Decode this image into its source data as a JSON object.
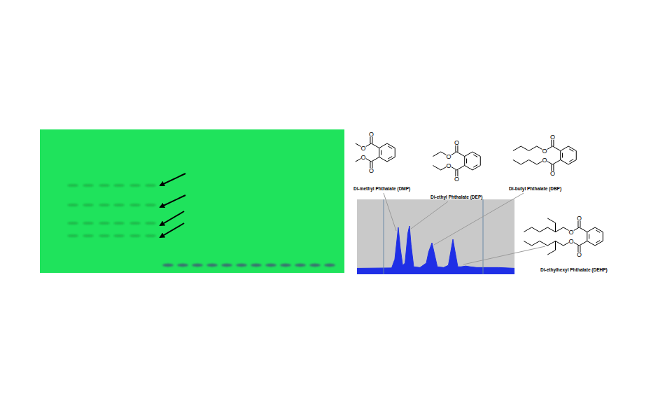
{
  "chart_data": {
    "type": "area",
    "x": [
      0,
      10,
      16.9,
      22,
      24,
      25,
      26.2,
      27.5,
      29,
      30.5,
      31.5,
      32.3,
      33.3,
      34.3,
      36,
      40,
      44,
      45.5,
      47.6,
      49,
      51,
      55,
      58,
      59.5,
      60.9,
      62.3,
      64,
      66,
      69,
      72,
      76,
      80,
      90,
      100
    ],
    "values": [
      8,
      8,
      8,
      8.5,
      20,
      40,
      62.6,
      35,
      12,
      15,
      35,
      55,
      64.5,
      40,
      10,
      9,
      15,
      30,
      42,
      30,
      10,
      9,
      12,
      30,
      46.7,
      30,
      10,
      10,
      11,
      10,
      9,
      9,
      9,
      8
    ],
    "color": "#1f2fe6",
    "xlim": [
      0,
      100
    ],
    "ylim": [
      0,
      100
    ],
    "vlines": [
      16.9,
      80
    ],
    "tick_labels": false,
    "grid": false
  },
  "structures": [
    {
      "label": "Di-methyl Phthalate (DMP)"
    },
    {
      "label": "Di-ethyl Phthalate (DEP)"
    },
    {
      "label": "Di-butyl Phthalate (DBP)"
    },
    {
      "label": "Di-ethylhexyl Phthalate (DEHP)"
    }
  ],
  "atom_label": "O"
}
